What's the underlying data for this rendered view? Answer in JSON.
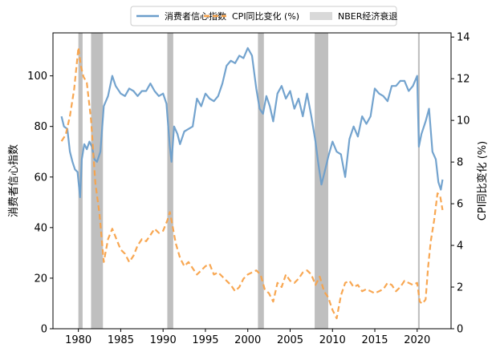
{
  "chart_data": {
    "type": "line",
    "title": "",
    "xlabel": "",
    "ylabel_left": "消费者信心指数",
    "ylabel_right": "CPI同比变化 (%)",
    "xlim": [
      1977,
      2024
    ],
    "ylim_left": [
      0,
      117
    ],
    "ylim_right": [
      0,
      14.2
    ],
    "x_ticks": [
      1980,
      1985,
      1990,
      1995,
      2000,
      2005,
      2010,
      2015,
      2020
    ],
    "y_ticks_left": [
      0,
      20,
      40,
      60,
      80,
      100
    ],
    "y_ticks_right": [
      0,
      2,
      4,
      6,
      8,
      10,
      12,
      14
    ],
    "legend_position": "top-center",
    "legend": [
      {
        "label": "消费者信心指数",
        "kind": "line",
        "color": "#6b9ecb"
      },
      {
        "label": "CPI同比变化 (%)",
        "kind": "dashed",
        "color": "#f8a249"
      },
      {
        "label": "NBER经济衰退",
        "kind": "patch",
        "color": "#d9d9d9"
      }
    ],
    "recessions": [
      {
        "start": 1980.0,
        "end": 1980.5
      },
      {
        "start": 1981.5,
        "end": 1982.9
      },
      {
        "start": 1990.5,
        "end": 1991.2
      },
      {
        "start": 2001.2,
        "end": 2001.9
      },
      {
        "start": 2007.9,
        "end": 2009.5
      },
      {
        "start": 2020.1,
        "end": 2020.3
      }
    ],
    "series": [
      {
        "name": "消费者信心指数",
        "axis": "left",
        "color": "#6b9ecb",
        "style": "solid",
        "x": [
          1978.0,
          1978.3,
          1978.7,
          1979.0,
          1979.3,
          1979.6,
          1979.9,
          1980.2,
          1980.4,
          1980.7,
          1981.0,
          1981.3,
          1981.6,
          1981.9,
          1982.2,
          1982.6,
          1983.0,
          1983.5,
          1984.0,
          1984.4,
          1985.0,
          1985.5,
          1986.0,
          1986.5,
          1987.0,
          1987.5,
          1988.0,
          1988.5,
          1989.0,
          1989.5,
          1990.0,
          1990.4,
          1990.8,
          1991.0,
          1991.3,
          1991.7,
          1992.0,
          1992.5,
          1993.0,
          1993.5,
          1994.0,
          1994.5,
          1995.0,
          1995.5,
          1996.0,
          1996.5,
          1997.0,
          1997.5,
          1998.0,
          1998.5,
          1999.0,
          1999.5,
          2000.0,
          2000.5,
          2001.0,
          2001.4,
          2001.8,
          2002.2,
          2002.6,
          2003.0,
          2003.5,
          2004.0,
          2004.5,
          2005.0,
          2005.5,
          2006.0,
          2006.5,
          2007.0,
          2007.5,
          2008.0,
          2008.3,
          2008.7,
          2009.0,
          2009.5,
          2010.0,
          2010.5,
          2011.0,
          2011.5,
          2012.0,
          2012.5,
          2013.0,
          2013.5,
          2014.0,
          2014.5,
          2015.0,
          2015.5,
          2016.0,
          2016.5,
          2017.0,
          2017.5,
          2018.0,
          2018.5,
          2019.0,
          2019.5,
          2020.0,
          2020.2,
          2020.5,
          2021.0,
          2021.4,
          2021.8,
          2022.2,
          2022.5,
          2022.8,
          2023.0
        ],
        "y": [
          84,
          80,
          79,
          70,
          66,
          63,
          62,
          52,
          67,
          73,
          71,
          74,
          72,
          67,
          66,
          70,
          88,
          92,
          100,
          96,
          93,
          92,
          95,
          94,
          92,
          94,
          94,
          97,
          94,
          92,
          93,
          89,
          72,
          66,
          80,
          77,
          73,
          78,
          79,
          80,
          91,
          88,
          93,
          91,
          90,
          92,
          97,
          104,
          106,
          105,
          108,
          107,
          111,
          108,
          95,
          87,
          85,
          92,
          88,
          82,
          93,
          96,
          91,
          94,
          87,
          91,
          84,
          93,
          84,
          74,
          66,
          57,
          61,
          68,
          74,
          70,
          69,
          60,
          75,
          80,
          76,
          84,
          81,
          84,
          95,
          93,
          92,
          90,
          96,
          96,
          98,
          98,
          94,
          96,
          100,
          72,
          77,
          82,
          87,
          70,
          67,
          58,
          55,
          59
        ]
      },
      {
        "name": "CPI同比变化 (%)",
        "axis": "right",
        "color": "#f8a249",
        "style": "dashed",
        "x": [
          1978.0,
          1978.5,
          1979.0,
          1979.5,
          1980.0,
          1980.3,
          1980.6,
          1981.0,
          1981.5,
          1982.0,
          1982.5,
          1983.0,
          1983.5,
          1984.0,
          1984.5,
          1985.0,
          1985.5,
          1986.0,
          1986.5,
          1987.0,
          1987.5,
          1988.0,
          1988.5,
          1989.0,
          1989.5,
          1990.0,
          1990.5,
          1990.8,
          1991.0,
          1991.5,
          1992.0,
          1992.5,
          1993.0,
          1993.5,
          1994.0,
          1994.5,
          1995.0,
          1995.5,
          1996.0,
          1996.5,
          1997.0,
          1997.5,
          1998.0,
          1998.5,
          1999.0,
          1999.5,
          2000.0,
          2000.5,
          2001.0,
          2001.5,
          2002.0,
          2002.5,
          2003.0,
          2003.5,
          2004.0,
          2004.5,
          2005.0,
          2005.5,
          2006.0,
          2006.5,
          2007.0,
          2007.5,
          2008.0,
          2008.5,
          2009.0,
          2009.5,
          2010.0,
          2010.5,
          2011.0,
          2011.5,
          2012.0,
          2012.5,
          2013.0,
          2013.5,
          2014.0,
          2014.5,
          2015.0,
          2015.5,
          2016.0,
          2016.5,
          2017.0,
          2017.5,
          2018.0,
          2018.5,
          2019.0,
          2019.5,
          2020.0,
          2020.3,
          2020.6,
          2021.0,
          2021.3,
          2021.6,
          2022.0,
          2022.4,
          2022.7,
          2023.0
        ],
        "y": [
          9.0,
          9.3,
          10.2,
          11.5,
          13.5,
          12.6,
          12.1,
          11.8,
          10.0,
          7.0,
          5.5,
          3.2,
          4.3,
          4.8,
          4.3,
          3.8,
          3.6,
          3.2,
          3.5,
          4.0,
          4.3,
          4.2,
          4.5,
          4.8,
          4.6,
          4.7,
          5.2,
          5.6,
          5.2,
          4.1,
          3.4,
          3.0,
          3.2,
          2.9,
          2.6,
          2.8,
          3.0,
          3.1,
          2.6,
          2.7,
          2.5,
          2.3,
          2.1,
          1.8,
          2.0,
          2.4,
          2.6,
          2.7,
          2.8,
          2.6,
          1.9,
          1.7,
          1.3,
          2.2,
          2.0,
          2.6,
          2.3,
          2.2,
          2.4,
          2.7,
          2.8,
          2.6,
          2.1,
          2.5,
          1.8,
          1.5,
          0.9,
          0.5,
          1.6,
          2.2,
          2.3,
          2.0,
          2.1,
          1.8,
          1.9,
          1.8,
          1.7,
          1.8,
          1.9,
          2.2,
          2.1,
          1.8,
          2.0,
          2.3,
          2.2,
          2.1,
          2.2,
          1.3,
          1.2,
          1.4,
          3.0,
          4.2,
          5.2,
          6.5,
          6.4,
          5.7
        ]
      }
    ]
  }
}
